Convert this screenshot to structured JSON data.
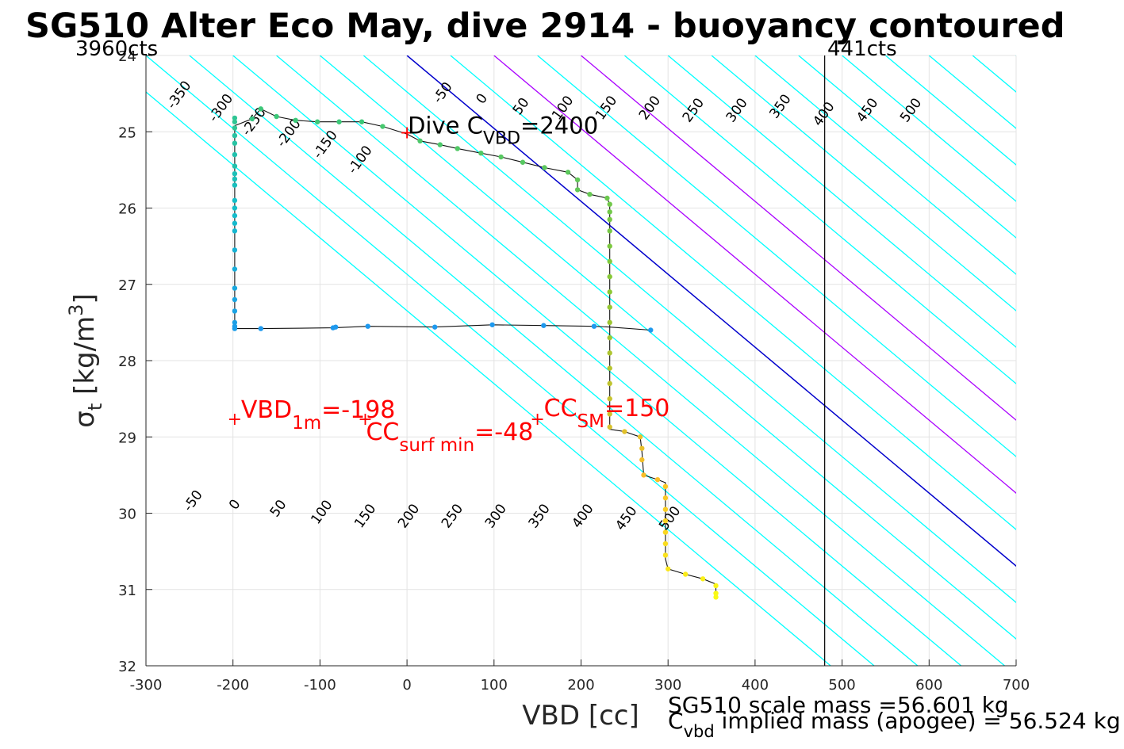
{
  "chart_data": {
    "type": "scatter",
    "title": "SG510 Alter Eco May, dive 2914 - buoyancy contoured",
    "xlabel": "VBD [cc]",
    "ylabel_main": "σ",
    "ylabel_sub": "t",
    "ylabel_unit": " [kg/m",
    "ylabel_sup": "3",
    "ylabel_close": "]",
    "xlim": [
      -300,
      700
    ],
    "ylim": [
      24,
      32
    ],
    "y_reversed": true,
    "grid": true,
    "x_ticks": [
      "-300",
      "-200",
      "-100",
      "0",
      "100",
      "200",
      "300",
      "400",
      "500",
      "600",
      "700"
    ],
    "y_ticks": [
      "24",
      "25",
      "26",
      "27",
      "28",
      "29",
      "30",
      "31",
      "32"
    ],
    "corner_labels": {
      "left": "3960cts",
      "right": "441cts"
    },
    "vertical_line_x": 480,
    "contour_slope": 0.00956,
    "contour_levels": [
      -350,
      -300,
      -250,
      -200,
      -150,
      -100,
      -50,
      0,
      50,
      100,
      150,
      200,
      250,
      300,
      350,
      400,
      450,
      500,
      550,
      600,
      650,
      700,
      750,
      800,
      850,
      900
    ],
    "contour_colors": {
      "default": "#00ffff",
      "zero": "#0000cc",
      "highlight": "#aa00ff",
      "labels": "#000000"
    },
    "highlight_levels": [
      100,
      200
    ],
    "upper_contour_labels": {
      "row_top": [
        {
          "text": "-350",
          "x": -258,
          "y": 24.55
        },
        {
          "text": "-300",
          "x": -210,
          "y": 24.72
        },
        {
          "text": "-50",
          "x": 45,
          "y": 24.52
        },
        {
          "text": "0",
          "x": 90,
          "y": 24.6
        },
        {
          "text": "50",
          "x": 135,
          "y": 24.7
        },
        {
          "text": "100",
          "x": 183,
          "y": 24.72
        },
        {
          "text": "150",
          "x": 233,
          "y": 24.72
        },
        {
          "text": "200",
          "x": 283,
          "y": 24.72
        },
        {
          "text": "250",
          "x": 333,
          "y": 24.75
        },
        {
          "text": "300",
          "x": 383,
          "y": 24.75
        },
        {
          "text": "350",
          "x": 433,
          "y": 24.7
        },
        {
          "text": "400",
          "x": 483,
          "y": 24.8
        },
        {
          "text": "450",
          "x": 533,
          "y": 24.75
        },
        {
          "text": "500",
          "x": 583,
          "y": 24.75
        }
      ],
      "row_lower": [
        {
          "text": "-250",
          "x": -172,
          "y": 24.9
        },
        {
          "text": "-200",
          "x": -132,
          "y": 25.05
        },
        {
          "text": "-150",
          "x": -90,
          "y": 25.2
        },
        {
          "text": "-100",
          "x": -50,
          "y": 25.4
        }
      ]
    },
    "lower_contour_labels": [
      {
        "text": "-50",
        "x": -242,
        "y": 29.87
      },
      {
        "text": "0",
        "x": -194,
        "y": 29.92
      },
      {
        "text": "50",
        "x": -144,
        "y": 29.97
      },
      {
        "text": "100",
        "x": -94,
        "y": 30.02
      },
      {
        "text": "150",
        "x": -44,
        "y": 30.07
      },
      {
        "text": "200",
        "x": 6,
        "y": 30.07
      },
      {
        "text": "250",
        "x": 56,
        "y": 30.07
      },
      {
        "text": "300",
        "x": 106,
        "y": 30.07
      },
      {
        "text": "350",
        "x": 156,
        "y": 30.07
      },
      {
        "text": "400",
        "x": 206,
        "y": 30.07
      },
      {
        "text": "450",
        "x": 256,
        "y": 30.1
      },
      {
        "text": "500",
        "x": 306,
        "y": 30.1
      }
    ],
    "trajectory": [
      [
        -198,
        24.92
      ],
      [
        -178,
        24.83
      ],
      [
        -168,
        24.7
      ],
      [
        -150,
        24.8
      ],
      [
        -128,
        24.85
      ],
      [
        -103,
        24.87
      ],
      [
        -78,
        24.87
      ],
      [
        -52,
        24.87
      ],
      [
        -28,
        24.93
      ],
      [
        0,
        25.03
      ],
      [
        15,
        25.12
      ],
      [
        38,
        25.17
      ],
      [
        58,
        25.22
      ],
      [
        85,
        25.28
      ],
      [
        108,
        25.33
      ],
      [
        133,
        25.4
      ],
      [
        158,
        25.47
      ],
      [
        185,
        25.53
      ],
      [
        196,
        25.63
      ],
      [
        196,
        25.76
      ],
      [
        210,
        25.82
      ],
      [
        230,
        25.87
      ],
      [
        233,
        25.95
      ],
      [
        233,
        26.1
      ],
      [
        233,
        26.3
      ],
      [
        233,
        26.6
      ],
      [
        233,
        27.0
      ],
      [
        233,
        27.4
      ],
      [
        233,
        27.8
      ],
      [
        233,
        28.2
      ],
      [
        233,
        28.6
      ],
      [
        233,
        28.9
      ],
      [
        250,
        28.93
      ],
      [
        268,
        29.0
      ],
      [
        270,
        29.2
      ],
      [
        272,
        29.5
      ],
      [
        288,
        29.56
      ],
      [
        297,
        29.6
      ],
      [
        297,
        29.9
      ],
      [
        297,
        30.3
      ],
      [
        297,
        30.6
      ],
      [
        300,
        30.73
      ],
      [
        320,
        30.8
      ],
      [
        340,
        30.86
      ],
      [
        355,
        30.93
      ],
      [
        355,
        31.05
      ]
    ],
    "trajectory_down": [
      [
        -198,
        24.92
      ],
      [
        -198,
        25.2
      ],
      [
        -198,
        25.6
      ],
      [
        -198,
        26.0
      ],
      [
        -198,
        26.5
      ],
      [
        -198,
        27.0
      ],
      [
        -198,
        27.58
      ],
      [
        -168,
        27.58
      ],
      [
        -85,
        27.57
      ],
      [
        -45,
        27.55
      ],
      [
        32,
        27.56
      ],
      [
        98,
        27.53
      ],
      [
        157,
        27.54
      ],
      [
        215,
        27.55
      ],
      [
        232,
        27.56
      ],
      [
        280,
        27.6
      ]
    ],
    "points": [
      [
        -198,
        24.82,
        0.55
      ],
      [
        -198,
        24.87,
        0.55
      ],
      [
        -198,
        24.95,
        0.55
      ],
      [
        -198,
        25.05,
        0.52
      ],
      [
        -198,
        25.15,
        0.52
      ],
      [
        -198,
        25.3,
        0.5
      ],
      [
        -198,
        25.45,
        0.5
      ],
      [
        -198,
        25.55,
        0.48
      ],
      [
        -198,
        25.62,
        0.48
      ],
      [
        -198,
        25.7,
        0.47
      ],
      [
        -198,
        25.9,
        0.45
      ],
      [
        -198,
        26.0,
        0.45
      ],
      [
        -198,
        26.1,
        0.44
      ],
      [
        -198,
        26.2,
        0.43
      ],
      [
        -198,
        26.3,
        0.42
      ],
      [
        -198,
        26.55,
        0.4
      ],
      [
        -198,
        26.8,
        0.38
      ],
      [
        -198,
        27.05,
        0.36
      ],
      [
        -198,
        27.2,
        0.35
      ],
      [
        -198,
        27.35,
        0.34
      ],
      [
        -198,
        27.5,
        0.33
      ],
      [
        -198,
        27.55,
        0.32
      ],
      [
        -198,
        27.58,
        0.32
      ],
      [
        -168,
        27.58,
        0.3
      ],
      [
        -85,
        27.57,
        0.3
      ],
      [
        -82,
        27.56,
        0.3
      ],
      [
        -45,
        27.55,
        0.3
      ],
      [
        32,
        27.56,
        0.3
      ],
      [
        98,
        27.53,
        0.3
      ],
      [
        157,
        27.54,
        0.3
      ],
      [
        215,
        27.55,
        0.3
      ],
      [
        280,
        27.6,
        0.3
      ],
      [
        -178,
        24.83,
        0.58
      ],
      [
        -168,
        24.7,
        0.6
      ],
      [
        -150,
        24.8,
        0.6
      ],
      [
        -128,
        24.85,
        0.6
      ],
      [
        -103,
        24.87,
        0.6
      ],
      [
        -78,
        24.87,
        0.6
      ],
      [
        -52,
        24.87,
        0.6
      ],
      [
        -28,
        24.93,
        0.62
      ],
      [
        15,
        25.12,
        0.63
      ],
      [
        38,
        25.17,
        0.63
      ],
      [
        58,
        25.22,
        0.64
      ],
      [
        85,
        25.28,
        0.64
      ],
      [
        108,
        25.33,
        0.65
      ],
      [
        133,
        25.4,
        0.65
      ],
      [
        158,
        25.47,
        0.66
      ],
      [
        185,
        25.53,
        0.66
      ],
      [
        196,
        25.63,
        0.67
      ],
      [
        196,
        25.76,
        0.67
      ],
      [
        210,
        25.82,
        0.68
      ],
      [
        230,
        25.87,
        0.69
      ],
      [
        233,
        25.95,
        0.7
      ],
      [
        233,
        26.05,
        0.7
      ],
      [
        233,
        26.15,
        0.71
      ],
      [
        233,
        26.3,
        0.71
      ],
      [
        233,
        26.5,
        0.72
      ],
      [
        233,
        26.7,
        0.73
      ],
      [
        233,
        26.9,
        0.74
      ],
      [
        233,
        27.1,
        0.75
      ],
      [
        233,
        27.3,
        0.76
      ],
      [
        233,
        27.5,
        0.77
      ],
      [
        233,
        27.7,
        0.78
      ],
      [
        233,
        27.9,
        0.79
      ],
      [
        233,
        28.1,
        0.8
      ],
      [
        233,
        28.3,
        0.81
      ],
      [
        233,
        28.5,
        0.82
      ],
      [
        233,
        28.7,
        0.83
      ],
      [
        233,
        28.87,
        0.84
      ],
      [
        250,
        28.93,
        0.85
      ],
      [
        268,
        29.0,
        0.86
      ],
      [
        270,
        29.15,
        0.86
      ],
      [
        270,
        29.3,
        0.87
      ],
      [
        272,
        29.5,
        0.88
      ],
      [
        288,
        29.56,
        0.88
      ],
      [
        297,
        29.65,
        0.9
      ],
      [
        297,
        29.8,
        0.9
      ],
      [
        297,
        29.95,
        0.91
      ],
      [
        297,
        30.1,
        0.92
      ],
      [
        297,
        30.25,
        0.93
      ],
      [
        297,
        30.4,
        0.94
      ],
      [
        297,
        30.55,
        0.95
      ],
      [
        300,
        30.73,
        0.96
      ],
      [
        320,
        30.8,
        0.97
      ],
      [
        340,
        30.86,
        0.98
      ],
      [
        355,
        30.95,
        0.99
      ],
      [
        355,
        31.05,
        1.0
      ],
      [
        355,
        31.1,
        1.0
      ]
    ],
    "annotations": {
      "dive_cvbd": {
        "prefix": "Dive C",
        "sub": "VBD",
        "suffix": "=2400",
        "x": 0,
        "y": 25.0
      },
      "vbd_1m": {
        "prefix": "VBD",
        "sub": "1m",
        "suffix": "=-198",
        "x": -198,
        "y": 28.77
      },
      "cc_surf_min": {
        "prefix": "CC",
        "sub": "surf min",
        "suffix": "=-48",
        "x": -48,
        "y": 28.77
      },
      "cc_sm": {
        "prefix": "CC",
        "sub": "SM",
        "suffix": "=150",
        "x": 150,
        "y": 28.77
      }
    },
    "footer": {
      "line1": "SG510 scale mass =56.601 kg",
      "line2_prefix": "C",
      "line2_sub": "vbd",
      "line2_suffix": " implied mass (apogee) = 56.524 kg"
    }
  }
}
